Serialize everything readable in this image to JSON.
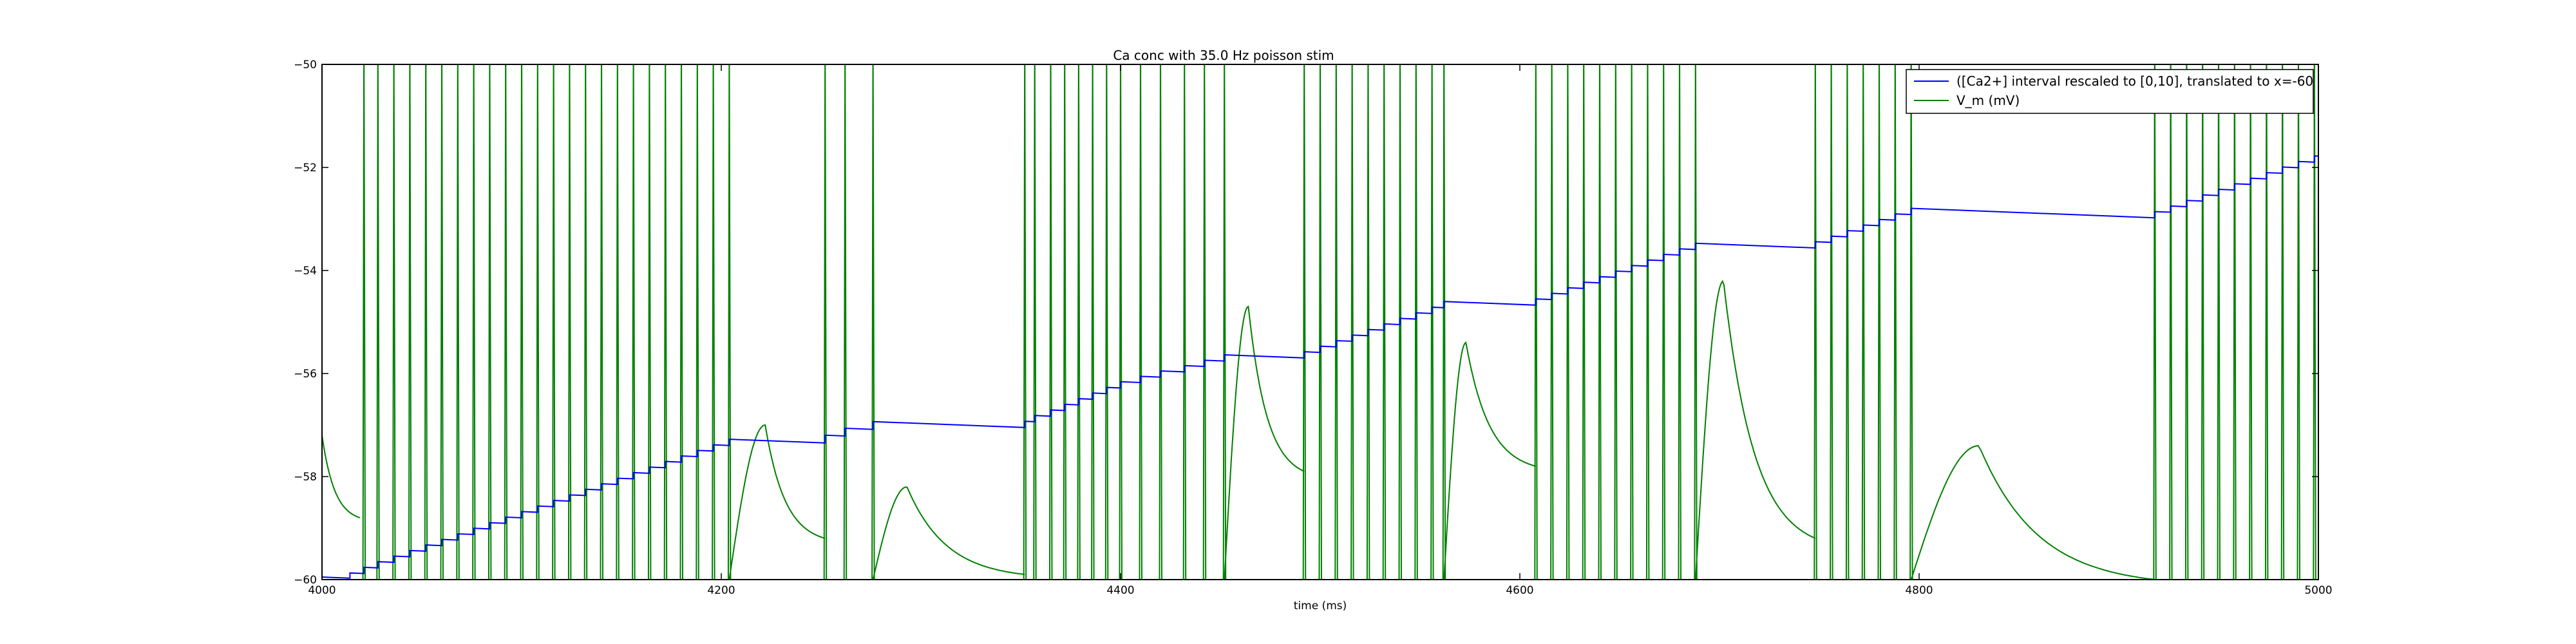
{
  "chart_data": {
    "type": "line",
    "title": "Ca conc with 35.0 Hz poisson stim",
    "xlabel": "time (ms)",
    "ylabel": "",
    "xlim": [
      4000,
      5000
    ],
    "ylim": [
      -60,
      -50
    ],
    "xticks": [
      4000,
      4200,
      4400,
      4600,
      4800,
      5000
    ],
    "yticks": [
      -60,
      -58,
      -56,
      -54,
      -52,
      -50
    ],
    "grid": false,
    "legend": {
      "placement": "top-right"
    },
    "spike_peak_mV": -50,
    "series": [
      {
        "name": "([Ca2+] interval rescaled to [0,10], translated to x=-60",
        "color": "#0000ff",
        "kind": "staircase",
        "start": [
          4000,
          -59.95
        ],
        "decay_per_ms": 0.0015,
        "jumps": [
          {
            "t": 4014,
            "dy": 0.1
          },
          {
            "t": 4021,
            "dy": 0.12
          },
          {
            "t": 4028,
            "dy": 0.12
          },
          {
            "t": 4036,
            "dy": 0.12
          },
          {
            "t": 4044,
            "dy": 0.12
          },
          {
            "t": 4052,
            "dy": 0.12
          },
          {
            "t": 4060,
            "dy": 0.12
          },
          {
            "t": 4068,
            "dy": 0.12
          },
          {
            "t": 4076,
            "dy": 0.12
          },
          {
            "t": 4084,
            "dy": 0.12
          },
          {
            "t": 4092,
            "dy": 0.12
          },
          {
            "t": 4100,
            "dy": 0.12
          },
          {
            "t": 4108,
            "dy": 0.12
          },
          {
            "t": 4116,
            "dy": 0.12
          },
          {
            "t": 4124,
            "dy": 0.12
          },
          {
            "t": 4132,
            "dy": 0.12
          },
          {
            "t": 4140,
            "dy": 0.12
          },
          {
            "t": 4148,
            "dy": 0.12
          },
          {
            "t": 4156,
            "dy": 0.12
          },
          {
            "t": 4164,
            "dy": 0.12
          },
          {
            "t": 4172,
            "dy": 0.12
          },
          {
            "t": 4180,
            "dy": 0.12
          },
          {
            "t": 4188,
            "dy": 0.12
          },
          {
            "t": 4196,
            "dy": 0.12
          },
          {
            "t": 4204,
            "dy": 0.12
          },
          {
            "t": 4252,
            "dy": 0.15
          },
          {
            "t": 4262,
            "dy": 0.15
          },
          {
            "t": 4276,
            "dy": 0.15
          },
          {
            "t": 4352,
            "dy": 0.12
          },
          {
            "t": 4357,
            "dy": 0.12
          },
          {
            "t": 4365,
            "dy": 0.12
          },
          {
            "t": 4372,
            "dy": 0.12
          },
          {
            "t": 4379,
            "dy": 0.12
          },
          {
            "t": 4386,
            "dy": 0.12
          },
          {
            "t": 4393,
            "dy": 0.12
          },
          {
            "t": 4400,
            "dy": 0.12
          },
          {
            "t": 4410,
            "dy": 0.12
          },
          {
            "t": 4420,
            "dy": 0.12
          },
          {
            "t": 4432,
            "dy": 0.12
          },
          {
            "t": 4442,
            "dy": 0.12
          },
          {
            "t": 4452,
            "dy": 0.12
          },
          {
            "t": 4492,
            "dy": 0.12
          },
          {
            "t": 4500,
            "dy": 0.12
          },
          {
            "t": 4508,
            "dy": 0.12
          },
          {
            "t": 4516,
            "dy": 0.12
          },
          {
            "t": 4524,
            "dy": 0.12
          },
          {
            "t": 4532,
            "dy": 0.12
          },
          {
            "t": 4540,
            "dy": 0.12
          },
          {
            "t": 4548,
            "dy": 0.12
          },
          {
            "t": 4556,
            "dy": 0.12
          },
          {
            "t": 4562,
            "dy": 0.12
          },
          {
            "t": 4608,
            "dy": 0.12
          },
          {
            "t": 4616,
            "dy": 0.12
          },
          {
            "t": 4624,
            "dy": 0.12
          },
          {
            "t": 4632,
            "dy": 0.12
          },
          {
            "t": 4640,
            "dy": 0.12
          },
          {
            "t": 4648,
            "dy": 0.12
          },
          {
            "t": 4656,
            "dy": 0.12
          },
          {
            "t": 4664,
            "dy": 0.12
          },
          {
            "t": 4672,
            "dy": 0.12
          },
          {
            "t": 4680,
            "dy": 0.12
          },
          {
            "t": 4688,
            "dy": 0.12
          },
          {
            "t": 4748,
            "dy": 0.12
          },
          {
            "t": 4756,
            "dy": 0.12
          },
          {
            "t": 4764,
            "dy": 0.12
          },
          {
            "t": 4772,
            "dy": 0.12
          },
          {
            "t": 4780,
            "dy": 0.12
          },
          {
            "t": 4788,
            "dy": 0.12
          },
          {
            "t": 4796,
            "dy": 0.12
          },
          {
            "t": 4918,
            "dy": 0.12
          },
          {
            "t": 4926,
            "dy": 0.12
          },
          {
            "t": 4934,
            "dy": 0.12
          },
          {
            "t": 4942,
            "dy": 0.12
          },
          {
            "t": 4950,
            "dy": 0.12
          },
          {
            "t": 4958,
            "dy": 0.12
          },
          {
            "t": 4966,
            "dy": 0.12
          },
          {
            "t": 4974,
            "dy": 0.12
          },
          {
            "t": 4982,
            "dy": 0.12
          },
          {
            "t": 4990,
            "dy": 0.12
          },
          {
            "t": 4998,
            "dy": 0.12
          }
        ]
      },
      {
        "name": "V_m (mV)",
        "color": "#008000",
        "kind": "spike_train",
        "spike_times": [
          4021,
          4028,
          4036,
          4044,
          4052,
          4060,
          4068,
          4076,
          4084,
          4092,
          4100,
          4108,
          4116,
          4124,
          4132,
          4140,
          4148,
          4156,
          4164,
          4172,
          4180,
          4188,
          4196,
          4204,
          4252,
          4262,
          4276,
          4352,
          4357,
          4365,
          4372,
          4379,
          4386,
          4393,
          4400,
          4410,
          4420,
          4432,
          4442,
          4452,
          4492,
          4500,
          4508,
          4516,
          4524,
          4532,
          4540,
          4548,
          4556,
          4562,
          4608,
          4616,
          4624,
          4632,
          4640,
          4648,
          4656,
          4664,
          4672,
          4680,
          4688,
          4748,
          4756,
          4764,
          4772,
          4780,
          4788,
          4796,
          4918,
          4926,
          4934,
          4942,
          4950,
          4958,
          4966,
          4974,
          4982,
          4990,
          4998
        ],
        "subthreshold_bumps": [
          {
            "t_start": 4000,
            "t_end": 4019,
            "v_start": -57.2,
            "v_end": -58.8,
            "v_peak": -57.2,
            "t_peak": 4000
          },
          {
            "t_start": 4204,
            "t_end": 4252,
            "v_start": -60,
            "v_end": -59.2,
            "v_peak": -57.0,
            "t_peak": 4222
          },
          {
            "t_start": 4276,
            "t_end": 4352,
            "v_start": -60,
            "v_end": -59.9,
            "v_peak": -58.2,
            "t_peak": 4293
          },
          {
            "t_start": 4452,
            "t_end": 4492,
            "v_start": -60,
            "v_end": -57.9,
            "v_peak": -54.7,
            "t_peak": 4464
          },
          {
            "t_start": 4562,
            "t_end": 4608,
            "v_start": -60,
            "v_end": -57.8,
            "v_peak": -55.4,
            "t_peak": 4573
          },
          {
            "t_start": 4688,
            "t_end": 4748,
            "v_start": -60,
            "v_end": -59.2,
            "v_peak": -54.2,
            "t_peak": 4702
          },
          {
            "t_start": 4796,
            "t_end": 4918,
            "v_start": -60,
            "v_end": -60,
            "v_peak": -57.4,
            "t_peak": 4830
          }
        ]
      }
    ]
  }
}
